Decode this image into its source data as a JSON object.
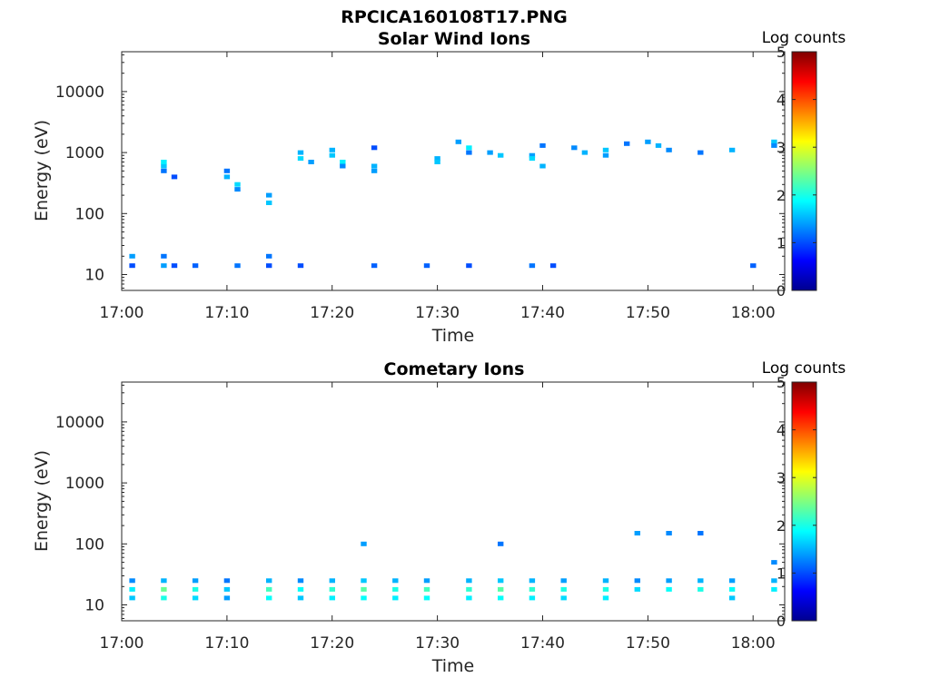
{
  "figure_title": "RPCICA160108T17.PNG",
  "colorbar": {
    "label": "Log counts",
    "ticks": [
      "0",
      "1",
      "2",
      "3",
      "4",
      "5"
    ],
    "range": [
      0,
      5
    ],
    "colormap": "jet"
  },
  "chart_data": [
    {
      "type": "heatmap",
      "title": "Solar Wind Ions",
      "xlabel": "Time",
      "ylabel": "Energy (eV)",
      "x_range": [
        "17:00",
        "18:03"
      ],
      "y_range": [
        5.5,
        45000
      ],
      "y_scale": "log",
      "x_ticks": [
        "17:00",
        "17:10",
        "17:20",
        "17:30",
        "17:40",
        "17:50",
        "18:00"
      ],
      "y_ticks": [
        "10",
        "100",
        "1000",
        "10000"
      ],
      "cells": [
        [
          "17:04",
          600,
          1.6
        ],
        [
          "17:04",
          700,
          1.8
        ],
        [
          "17:04",
          500,
          1.2
        ],
        [
          "17:04",
          14,
          1.4
        ],
        [
          "17:04",
          20,
          1.2
        ],
        [
          "17:05",
          400,
          1.0
        ],
        [
          "17:05",
          14,
          1.0
        ],
        [
          "17:10",
          500,
          1.2
        ],
        [
          "17:10",
          400,
          1.5
        ],
        [
          "17:11",
          300,
          1.7
        ],
        [
          "17:11",
          250,
          1.3
        ],
        [
          "17:14",
          200,
          1.4
        ],
        [
          "17:14",
          150,
          1.6
        ],
        [
          "17:14",
          14,
          1.0
        ],
        [
          "17:14",
          20,
          1.2
        ],
        [
          "17:17",
          1000,
          1.5
        ],
        [
          "17:17",
          800,
          1.7
        ],
        [
          "17:18",
          700,
          1.4
        ],
        [
          "17:20",
          1100,
          1.5
        ],
        [
          "17:20",
          900,
          1.6
        ],
        [
          "17:21",
          700,
          1.8
        ],
        [
          "17:21",
          600,
          1.3
        ],
        [
          "17:24",
          1200,
          1.0
        ],
        [
          "17:24",
          600,
          1.5
        ],
        [
          "17:24",
          500,
          1.4
        ],
        [
          "17:24",
          14,
          1.1
        ],
        [
          "17:30",
          800,
          1.5
        ],
        [
          "17:30",
          700,
          1.6
        ],
        [
          "17:32",
          1500,
          1.4
        ],
        [
          "17:33",
          1200,
          1.8
        ],
        [
          "17:33",
          1000,
          1.2
        ],
        [
          "17:35",
          1000,
          1.4
        ],
        [
          "17:36",
          900,
          1.6
        ],
        [
          "17:39",
          900,
          1.4
        ],
        [
          "17:39",
          800,
          1.7
        ],
        [
          "17:40",
          600,
          1.5
        ],
        [
          "17:40",
          1300,
          1.2
        ],
        [
          "17:43",
          1200,
          1.3
        ],
        [
          "17:44",
          1000,
          1.5
        ],
        [
          "17:46",
          1100,
          1.6
        ],
        [
          "17:46",
          900,
          1.4
        ],
        [
          "17:48",
          1400,
          1.2
        ],
        [
          "17:50",
          1500,
          1.4
        ],
        [
          "17:51",
          1300,
          1.5
        ],
        [
          "17:52",
          1100,
          1.3
        ],
        [
          "17:55",
          1000,
          1.2
        ],
        [
          "17:58",
          1100,
          1.5
        ],
        [
          "18:02",
          1500,
          1.6
        ],
        [
          "18:02",
          1300,
          1.3
        ],
        [
          "17:01",
          20,
          1.4
        ],
        [
          "17:01",
          14,
          1.0
        ],
        [
          "17:07",
          14,
          1.1
        ],
        [
          "17:11",
          14,
          1.2
        ],
        [
          "17:17",
          14,
          1.0
        ],
        [
          "17:29",
          14,
          1.1
        ],
        [
          "17:33",
          14,
          1.0
        ],
        [
          "17:39",
          14,
          1.2
        ],
        [
          "17:41",
          14,
          1.0
        ],
        [
          "18:00",
          14,
          1.1
        ]
      ]
    },
    {
      "type": "heatmap",
      "title": "Cometary Ions",
      "xlabel": "Time",
      "ylabel": "Energy (eV)",
      "x_range": [
        "17:00",
        "18:03"
      ],
      "y_range": [
        5.5,
        45000
      ],
      "y_scale": "log",
      "x_ticks": [
        "17:00",
        "17:10",
        "17:20",
        "17:30",
        "17:40",
        "17:50",
        "18:00"
      ],
      "y_ticks": [
        "10",
        "100",
        "1000",
        "10000"
      ],
      "cells": [
        [
          "17:01",
          25,
          1.3
        ],
        [
          "17:01",
          18,
          1.8
        ],
        [
          "17:01",
          13,
          1.6
        ],
        [
          "17:04",
          25,
          1.5
        ],
        [
          "17:04",
          18,
          2.4
        ],
        [
          "17:04",
          13,
          2.0
        ],
        [
          "17:07",
          25,
          1.4
        ],
        [
          "17:07",
          18,
          2.0
        ],
        [
          "17:07",
          13,
          1.7
        ],
        [
          "17:10",
          25,
          1.2
        ],
        [
          "17:10",
          18,
          1.6
        ],
        [
          "17:10",
          13,
          1.4
        ],
        [
          "17:14",
          25,
          1.5
        ],
        [
          "17:14",
          18,
          2.2
        ],
        [
          "17:14",
          13,
          1.9
        ],
        [
          "17:17",
          25,
          1.3
        ],
        [
          "17:17",
          18,
          1.9
        ],
        [
          "17:17",
          13,
          1.6
        ],
        [
          "17:20",
          25,
          1.5
        ],
        [
          "17:20",
          18,
          2.1
        ],
        [
          "17:20",
          13,
          1.8
        ],
        [
          "17:23",
          100,
          1.4
        ],
        [
          "17:23",
          25,
          1.6
        ],
        [
          "17:23",
          18,
          2.3
        ],
        [
          "17:23",
          13,
          1.9
        ],
        [
          "17:26",
          25,
          1.5
        ],
        [
          "17:26",
          18,
          2.0
        ],
        [
          "17:26",
          13,
          1.8
        ],
        [
          "17:29",
          25,
          1.4
        ],
        [
          "17:29",
          18,
          2.2
        ],
        [
          "17:29",
          13,
          1.9
        ],
        [
          "17:33",
          25,
          1.5
        ],
        [
          "17:33",
          18,
          2.1
        ],
        [
          "17:33",
          13,
          1.8
        ],
        [
          "17:36",
          100,
          1.2
        ],
        [
          "17:36",
          25,
          1.6
        ],
        [
          "17:36",
          18,
          2.3
        ],
        [
          "17:36",
          13,
          1.9
        ],
        [
          "17:39",
          25,
          1.5
        ],
        [
          "17:39",
          18,
          2.1
        ],
        [
          "17:39",
          13,
          1.8
        ],
        [
          "17:42",
          25,
          1.4
        ],
        [
          "17:42",
          18,
          2.0
        ],
        [
          "17:42",
          13,
          1.7
        ],
        [
          "17:46",
          25,
          1.5
        ],
        [
          "17:46",
          18,
          2.0
        ],
        [
          "17:46",
          13,
          1.8
        ],
        [
          "17:49",
          150,
          1.4
        ],
        [
          "17:49",
          25,
          1.3
        ],
        [
          "17:49",
          18,
          1.7
        ],
        [
          "17:52",
          150,
          1.3
        ],
        [
          "17:52",
          25,
          1.4
        ],
        [
          "17:52",
          18,
          1.9
        ],
        [
          "17:55",
          150,
          1.2
        ],
        [
          "17:55",
          25,
          1.5
        ],
        [
          "17:55",
          18,
          2.0
        ],
        [
          "17:58",
          25,
          1.4
        ],
        [
          "17:58",
          18,
          1.9
        ],
        [
          "17:58",
          13,
          1.6
        ],
        [
          "18:02",
          50,
          1.3
        ],
        [
          "18:02",
          25,
          1.5
        ],
        [
          "18:02",
          18,
          1.8
        ]
      ]
    }
  ]
}
